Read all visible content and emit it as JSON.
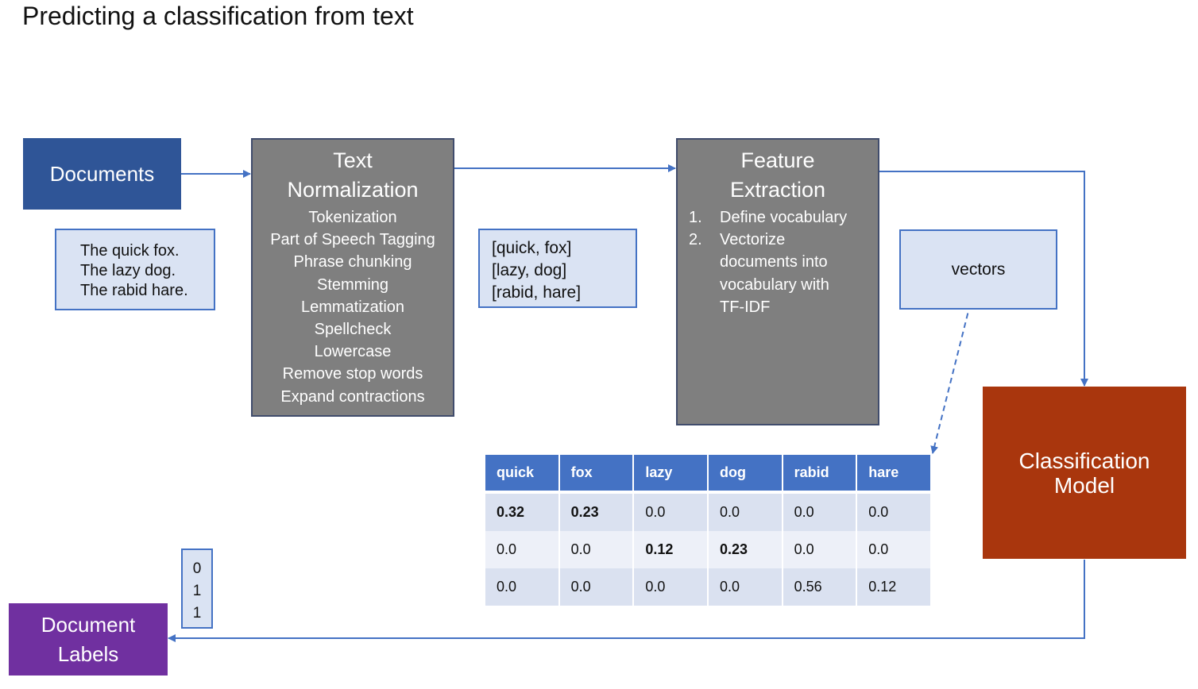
{
  "title": "Predicting a classification from text",
  "documents": {
    "label": "Documents",
    "sample": [
      "The quick fox.",
      "The lazy dog.",
      "The rabid hare."
    ]
  },
  "text_normalization": {
    "heading": [
      "Text",
      "Normalization"
    ],
    "steps": [
      "Tokenization",
      "Part of Speech Tagging",
      "Phrase chunking",
      "Stemming",
      "Lemmatization",
      "Spellcheck",
      "Lowercase",
      "Remove stop words",
      "Expand contractions"
    ]
  },
  "tokens": [
    "[quick, fox]",
    "[lazy, dog]",
    "[rabid, hare]"
  ],
  "feature_extraction": {
    "heading": [
      "Feature",
      "Extraction"
    ],
    "steps": [
      {
        "num": "1.",
        "lines": [
          "Define vocabulary"
        ]
      },
      {
        "num": "2.",
        "lines": [
          "Vectorize",
          "documents into",
          "vocabulary with",
          "TF-IDF"
        ]
      }
    ]
  },
  "vectors_label": "vectors",
  "tfidf_table": {
    "headers": [
      "quick",
      "fox",
      "lazy",
      "dog",
      "rabid",
      "hare"
    ],
    "rows": [
      [
        "0.32",
        "0.23",
        "0.0",
        "0.0",
        "0.0",
        "0.0"
      ],
      [
        "0.0",
        "0.0",
        "0.12",
        "0.23",
        "0.0",
        "0.0"
      ],
      [
        "0.0",
        "0.0",
        "0.0",
        "0.0",
        "0.56",
        "0.12"
      ]
    ],
    "bold_cells": [
      [
        0,
        0
      ],
      [
        0,
        1
      ],
      [
        1,
        2
      ],
      [
        1,
        3
      ]
    ]
  },
  "classification_model": [
    "Classification",
    "Model"
  ],
  "document_labels": {
    "label": [
      "Document",
      "Labels"
    ],
    "values": [
      "0",
      "1",
      "1"
    ]
  },
  "colors": {
    "documents": "#2f5597",
    "processing_box": "#7f7f7f",
    "note_fill": "#dae3f3",
    "note_border": "#4472c4",
    "model": "#a9360d",
    "labels": "#7030a0",
    "arrow": "#4472c4"
  }
}
